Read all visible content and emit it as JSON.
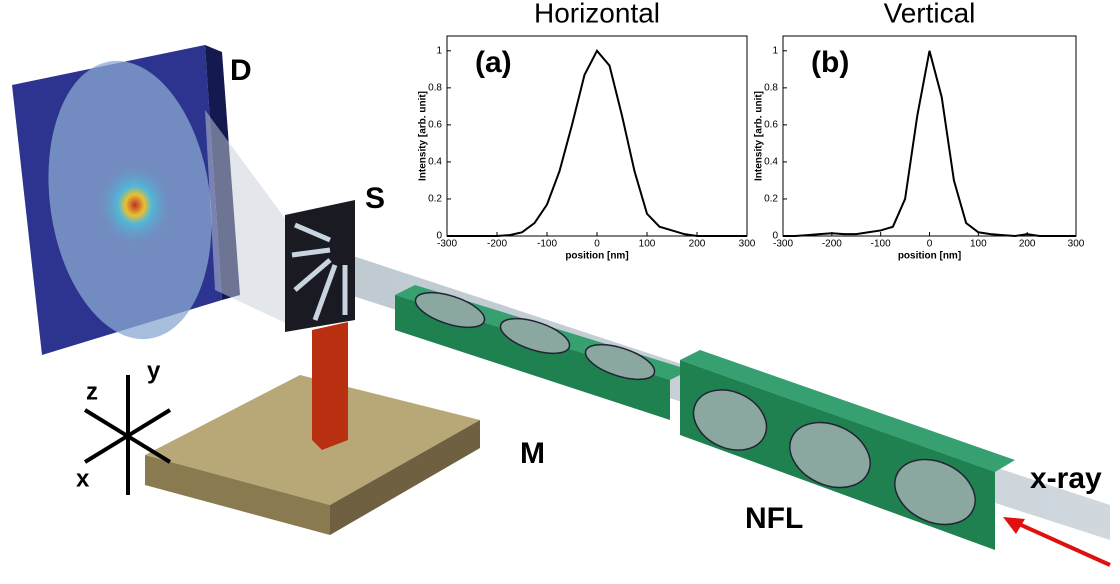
{
  "chart_data": [
    {
      "type": "line",
      "title": "Horizontal",
      "panel_label": "(a)",
      "x_label": "position [nm]",
      "y_label": "Intensity [arb. unit]",
      "x": [
        -300,
        -275,
        -250,
        -225,
        -200,
        -175,
        -150,
        -125,
        -100,
        -75,
        -50,
        -25,
        0,
        25,
        50,
        75,
        100,
        125,
        150,
        175,
        200,
        225,
        250,
        275,
        300
      ],
      "values": [
        0,
        0,
        0,
        0,
        0,
        0.005,
        0.02,
        0.07,
        0.17,
        0.35,
        0.6,
        0.87,
        1,
        0.92,
        0.65,
        0.35,
        0.12,
        0.05,
        0.03,
        0.01,
        0,
        0,
        0,
        0,
        0
      ],
      "color": "#000000",
      "xlim": [
        -300,
        300
      ],
      "ylim": [
        0,
        1.08
      ],
      "xticks": [
        -300,
        -200,
        -100,
        0,
        100,
        200,
        300
      ],
      "yticks": [
        0,
        0.2,
        0.4,
        0.6,
        0.8,
        1
      ]
    },
    {
      "type": "line",
      "title": "Vertical",
      "panel_label": "(b)",
      "x_label": "position [nm]",
      "y_label": "Intensity [arb. unit]",
      "x": [
        -300,
        -275,
        -250,
        -225,
        -200,
        -175,
        -150,
        -125,
        -100,
        -75,
        -50,
        -25,
        0,
        25,
        50,
        75,
        100,
        125,
        150,
        175,
        200,
        225,
        250,
        275,
        300
      ],
      "values": [
        0,
        0,
        0.005,
        0.01,
        0.015,
        0.01,
        0.01,
        0.02,
        0.03,
        0.05,
        0.2,
        0.65,
        1,
        0.75,
        0.3,
        0.07,
        0.02,
        0.01,
        0.005,
        0,
        0.01,
        0,
        0,
        0,
        0
      ],
      "color": "#000000",
      "xlim": [
        -300,
        300
      ],
      "ylim": [
        0,
        1.08
      ],
      "xticks": [
        -300,
        -200,
        -100,
        0,
        100,
        200,
        300
      ],
      "yticks": [
        0,
        0.2,
        0.4,
        0.6,
        0.8,
        1
      ]
    }
  ],
  "diagram": {
    "labels": {
      "detector": "D",
      "sample": "S",
      "motor": "M",
      "lens": "NFL",
      "beam": "x-ray",
      "axis_x": "x",
      "axis_y": "y",
      "axis_z": "z"
    }
  }
}
